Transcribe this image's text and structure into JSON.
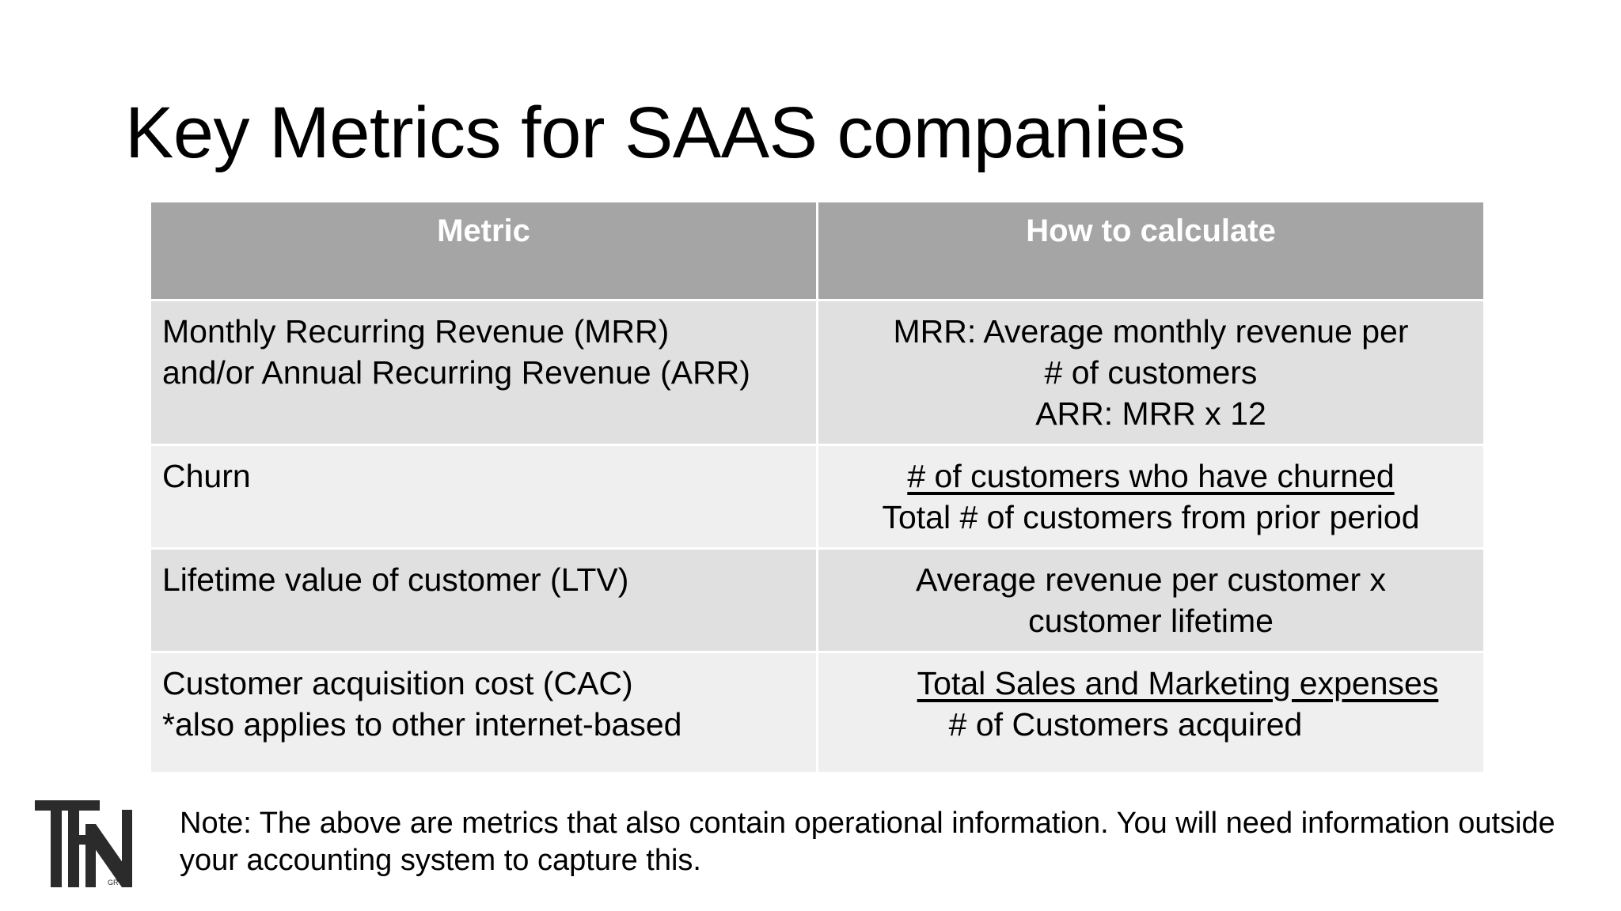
{
  "slide": {
    "title": "Key Metrics for SAAS companies"
  },
  "table": {
    "headers": {
      "metric": "Metric",
      "calculation": "How to calculate"
    },
    "rows": [
      {
        "metric_lines": [
          "Monthly Recurring Revenue (MRR)",
          "and/or Annual Recurring Revenue (ARR)"
        ],
        "calc_lines": [
          "MRR: Average monthly revenue per",
          "# of customers",
          "ARR: MRR x 12"
        ]
      },
      {
        "metric_lines": [
          "Churn"
        ],
        "calc_numerator": "# of customers who have churned",
        "calc_denominator": "Total # of customers from prior period"
      },
      {
        "metric_lines": [
          "Lifetime value of customer (LTV)"
        ],
        "calc_lines": [
          "Average revenue per customer x",
          "customer lifetime"
        ]
      },
      {
        "metric_lines": [
          "Customer acquisition cost (CAC)",
          "*also applies to other internet-based"
        ],
        "calc_numerator": "Total Sales and Marketing expenses",
        "calc_denominator": "# of Customers acquired"
      }
    ]
  },
  "note": {
    "lines": [
      "Note: The above are metrics that also contain operational  information. You will need information outside",
      "your accounting system to capture this."
    ]
  },
  "logo": {
    "text": "TFN",
    "subtext": "GR",
    "color": "#2b2b2b"
  },
  "colors": {
    "header_bg": "#a5a5a5",
    "row_dark": "#e0e0e0",
    "row_light": "#efefef"
  }
}
